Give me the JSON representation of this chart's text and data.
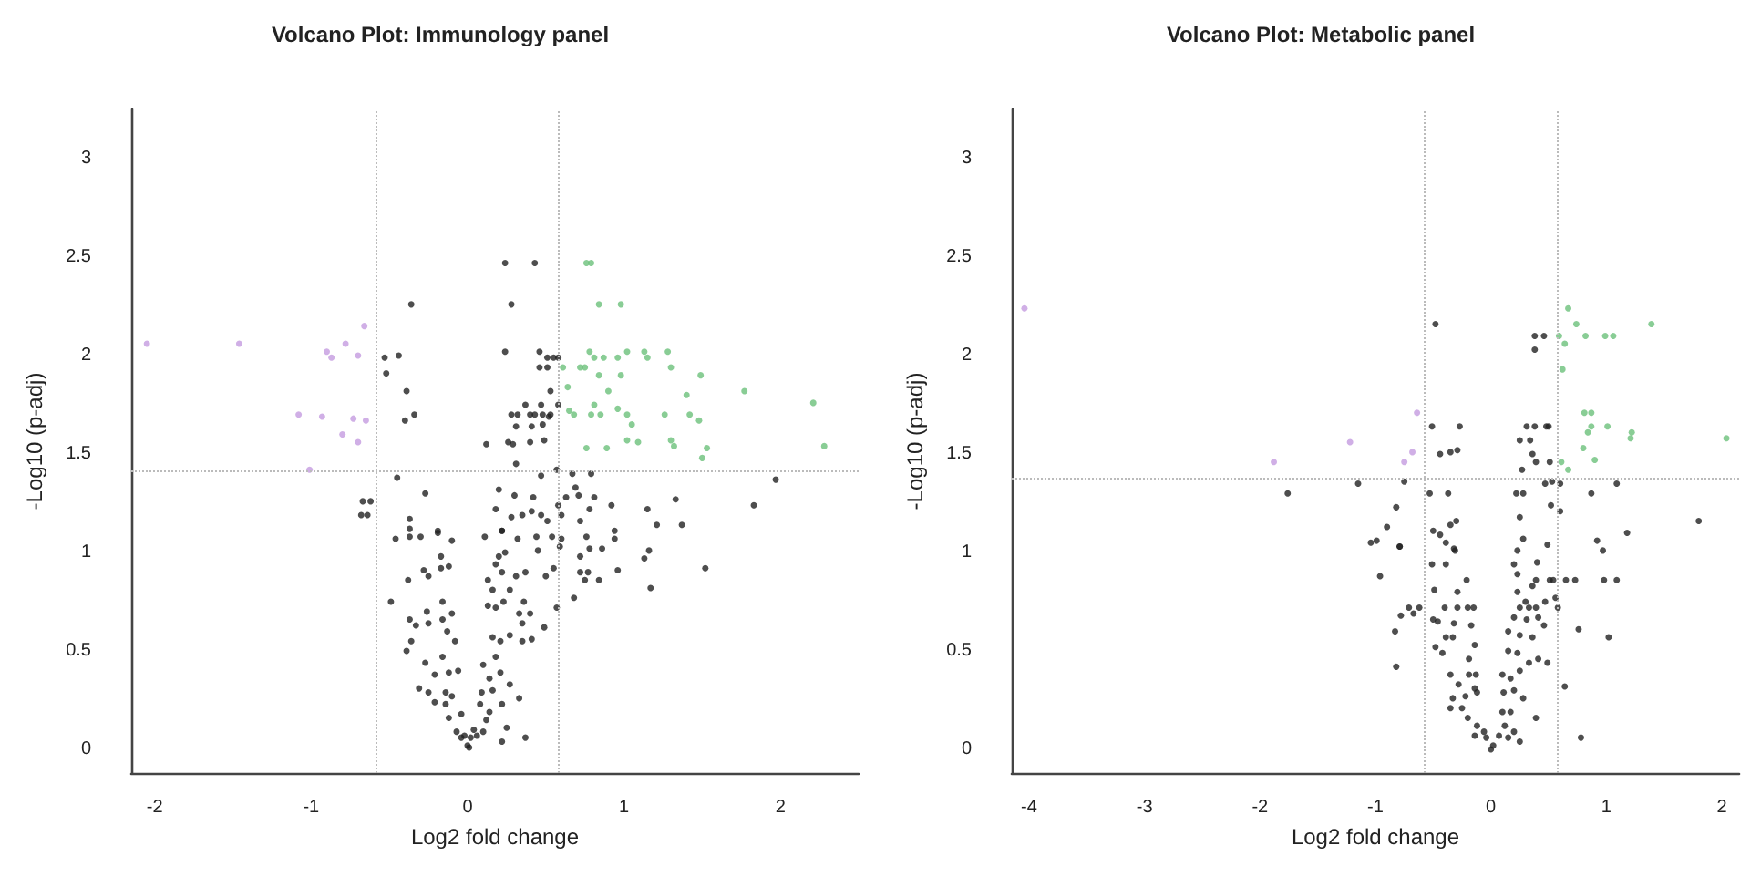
{
  "chart_data": [
    {
      "type": "scatter",
      "title": "Volcano Plot: Immunology panel",
      "xlabel": "Log2 fold change",
      "ylabel": "-Log10 (p-adj)",
      "xlim": [
        -2.15,
        2.5
      ],
      "xticks": [
        -2,
        -1,
        0,
        1,
        2
      ],
      "ylim": [
        -0.12,
        3.25
      ],
      "yticks": [
        0,
        0.5,
        1,
        1.5,
        2,
        2.5,
        3
      ],
      "grid": false,
      "marker": "circle",
      "ref_lines": [
        {
          "axis": "x",
          "value": -0.585,
          "color": "#bbbbbb",
          "line_style": "dotted"
        },
        {
          "axis": "x",
          "value": 0.585,
          "color": "#bbbbbb",
          "line_style": "dotted"
        },
        {
          "axis": "y",
          "value": 1.41,
          "color": "#bbbbbb",
          "line_style": "dotted"
        }
      ],
      "series": [
        {
          "color": "#c49be0",
          "x": [
            -2.05,
            -1.46,
            -0.9,
            -0.87,
            -0.78,
            -0.7,
            -0.66,
            -1.08,
            -0.93,
            -0.73,
            -0.65,
            -0.8,
            -0.7,
            -1.01
          ],
          "values": [
            2.06,
            2.06,
            2.02,
            1.99,
            2.06,
            2.0,
            2.15,
            1.7,
            1.69,
            1.68,
            1.67,
            1.6,
            1.56,
            1.42
          ]
        },
        {
          "color": "#6cc07a",
          "x": [
            0.78,
            0.81,
            0.87,
            0.96,
            1.02,
            1.13,
            1.15,
            1.28,
            0.61,
            0.72,
            0.75,
            0.84,
            0.98,
            1.3,
            1.49,
            0.64,
            0.9,
            1.4,
            1.77,
            2.21,
            0.65,
            0.68,
            0.81,
            0.96,
            0.79,
            0.85,
            1.02,
            1.05,
            1.26,
            1.42,
            1.48,
            1.02,
            1.09,
            1.3,
            1.32,
            1.53,
            1.5,
            0.89,
            0.76,
            2.28,
            0.76,
            0.79,
            0.84,
            0.98
          ],
          "values": [
            2.02,
            1.99,
            1.99,
            1.99,
            2.02,
            2.02,
            1.99,
            2.02,
            1.94,
            1.94,
            1.94,
            1.9,
            1.9,
            1.94,
            1.9,
            1.84,
            1.82,
            1.8,
            1.82,
            1.76,
            1.72,
            1.7,
            1.75,
            1.73,
            1.7,
            1.7,
            1.7,
            1.65,
            1.7,
            1.7,
            1.67,
            1.57,
            1.56,
            1.57,
            1.54,
            1.53,
            1.48,
            1.53,
            1.53,
            1.54,
            2.47,
            2.47,
            2.26,
            2.26
          ]
        },
        {
          "color": "#222222",
          "x": [
            -0.36,
            0.24,
            0.43,
            0.28,
            -0.53,
            -0.44,
            -0.52,
            -0.39,
            -0.4,
            -0.34,
            0.24,
            0.46,
            0.51,
            0.55,
            0.58,
            0.46,
            0.51,
            0.53,
            0.37,
            0.47,
            0.58,
            0.28,
            0.32,
            0.4,
            0.43,
            0.48,
            0.53,
            0.31,
            0.41,
            0.48,
            0.52,
            0.12,
            0.26,
            0.29,
            0.4,
            0.49,
            0.31,
            0.57,
            -0.45,
            -0.27,
            -0.67,
            -0.62,
            -0.68,
            -0.64,
            0.2,
            0.3,
            0.42,
            0.47,
            0.67,
            0.79,
            0.69,
            0.71,
            0.81,
            0.63,
            0.18,
            0.35,
            0.47,
            0.58,
            0.6,
            0.41,
            0.78,
            0.92,
            1.15,
            1.33,
            1.83,
            1.97,
            1.21,
            1.37,
            -0.37,
            -0.37,
            -0.19,
            0.22,
            0.28,
            0.51,
            0.72,
            0.94,
            -0.46,
            -0.37,
            -0.3,
            -0.19,
            -0.1,
            0.11,
            0.22,
            0.32,
            0.44,
            0.54,
            0.6,
            0.76,
            0.94,
            -0.17,
            -0.38,
            -0.28,
            -0.17,
            -0.12,
            -0.25,
            0.2,
            0.24,
            0.18,
            0.22,
            0.31,
            0.13,
            0.27,
            0.16,
            0.37,
            0.45,
            0.55,
            0.5,
            0.59,
            0.72,
            0.78,
            0.86,
            0.72,
            0.77,
            0.75,
            0.84,
            0.96,
            1.13,
            1.16,
            1.17,
            1.52,
            0.68,
            -0.49,
            -0.26,
            -0.16,
            -0.37,
            -0.33,
            -0.25,
            -0.16,
            -0.1,
            -0.13,
            -0.08,
            -0.36,
            -0.39,
            0.13,
            0.18,
            0.23,
            0.36,
            0.33,
            0.4,
            0.35,
            0.49,
            0.57,
            0.16,
            0.21,
            0.27,
            0.35,
            0.41,
            -0.27,
            -0.16,
            -0.21,
            -0.12,
            -0.06,
            -0.31,
            -0.25,
            -0.14,
            -0.21,
            -0.1,
            -0.14,
            -0.04,
            -0.12,
            0.1,
            0.18,
            0.14,
            0.21,
            0.09,
            0.16,
            0.27,
            0.33,
            0.08,
            0.14,
            0.22,
            0.12,
            0.25,
            0.37,
            0.22,
            -0.07,
            -0.02,
            0.02,
            0.06,
            0.0,
            0.04,
            -0.04,
            0.1,
            0.01
          ],
          "values": [
            2.26,
            2.47,
            2.47,
            2.26,
            1.99,
            2.0,
            1.91,
            1.82,
            1.67,
            1.7,
            2.02,
            2.02,
            1.99,
            1.99,
            1.99,
            1.94,
            1.94,
            1.82,
            1.75,
            1.75,
            1.75,
            1.7,
            1.7,
            1.7,
            1.7,
            1.7,
            1.7,
            1.64,
            1.64,
            1.65,
            1.69,
            1.55,
            1.56,
            1.55,
            1.56,
            1.57,
            1.45,
            1.42,
            1.38,
            1.3,
            1.26,
            1.26,
            1.19,
            1.19,
            1.32,
            1.29,
            1.28,
            1.39,
            1.4,
            1.4,
            1.33,
            1.29,
            1.28,
            1.28,
            1.22,
            1.19,
            1.19,
            1.24,
            1.19,
            1.21,
            1.22,
            1.24,
            1.22,
            1.27,
            1.24,
            1.37,
            1.14,
            1.14,
            1.17,
            1.12,
            1.11,
            1.11,
            1.18,
            1.16,
            1.16,
            1.11,
            1.07,
            1.08,
            1.08,
            1.1,
            1.06,
            1.08,
            1.11,
            1.07,
            1.08,
            1.08,
            1.07,
            1.08,
            1.07,
            0.98,
            0.86,
            0.91,
            0.92,
            0.93,
            0.88,
            0.98,
            1.0,
            0.94,
            0.9,
            0.88,
            0.86,
            0.81,
            0.81,
            0.9,
            1.01,
            0.92,
            0.88,
            1.03,
            0.98,
            1.02,
            1.02,
            0.9,
            0.9,
            0.86,
            0.86,
            0.91,
            0.97,
            1.01,
            0.82,
            0.92,
            0.77,
            0.75,
            0.7,
            0.75,
            0.66,
            0.63,
            0.64,
            0.66,
            0.69,
            0.6,
            0.55,
            0.55,
            0.5,
            0.73,
            0.72,
            0.75,
            0.75,
            0.69,
            0.69,
            0.64,
            0.62,
            0.72,
            0.57,
            0.55,
            0.58,
            0.55,
            0.56,
            0.44,
            0.47,
            0.38,
            0.39,
            0.4,
            0.31,
            0.29,
            0.29,
            0.24,
            0.27,
            0.23,
            0.18,
            0.16,
            0.43,
            0.47,
            0.36,
            0.39,
            0.29,
            0.3,
            0.33,
            0.26,
            0.23,
            0.19,
            0.23,
            0.15,
            0.11,
            0.06,
            0.04,
            0.09,
            0.07,
            0.06,
            0.07,
            0.02,
            0.1,
            0.06,
            0.09,
            0.01
          ]
        }
      ]
    },
    {
      "type": "scatter",
      "title": "Volcano Plot: Metabolic panel",
      "xlabel": "Log2 fold change",
      "ylabel": "-Log10 (p-adj)",
      "xlim": [
        -4.15,
        2.15
      ],
      "xticks": [
        -4,
        -3,
        -2,
        -1,
        0,
        1,
        2
      ],
      "ylim": [
        -0.12,
        3.25
      ],
      "yticks": [
        0,
        0.5,
        1,
        1.5,
        2,
        2.5,
        3
      ],
      "grid": false,
      "marker": "circle",
      "ref_lines": [
        {
          "axis": "x",
          "value": -0.585,
          "color": "#bbbbbb",
          "line_style": "dotted"
        },
        {
          "axis": "x",
          "value": 0.585,
          "color": "#bbbbbb",
          "line_style": "dotted"
        },
        {
          "axis": "y",
          "value": 1.38,
          "color": "#bbbbbb",
          "line_style": "dotted"
        }
      ],
      "series": [
        {
          "color": "#c49be0",
          "x": [
            -4.04,
            -1.88,
            -1.22,
            -0.75,
            -0.68,
            -0.64
          ],
          "values": [
            2.24,
            1.46,
            1.56,
            1.46,
            1.51,
            1.71
          ]
        },
        {
          "color": "#6cc07a",
          "x": [
            0.67,
            0.74,
            1.39,
            0.59,
            0.82,
            0.99,
            1.06,
            0.64,
            0.62,
            0.81,
            0.87,
            0.87,
            1.01,
            0.84,
            1.22,
            1.21,
            2.04,
            0.8,
            0.9,
            0.61,
            0.67
          ],
          "values": [
            2.24,
            2.16,
            2.16,
            2.1,
            2.1,
            2.1,
            2.1,
            2.06,
            1.93,
            1.71,
            1.71,
            1.64,
            1.64,
            1.61,
            1.61,
            1.58,
            1.58,
            1.53,
            1.47,
            1.46,
            1.42
          ]
        },
        {
          "color": "#222222",
          "x": [
            -0.48,
            0.38,
            0.46,
            0.38,
            -0.51,
            -0.27,
            0.31,
            0.38,
            0.48,
            0.5,
            -0.44,
            -0.35,
            -0.29,
            0.25,
            0.34,
            0.36,
            0.39,
            0.51,
            0.27,
            -1.76,
            -1.15,
            -0.75,
            -0.53,
            -0.37,
            0.22,
            0.28,
            0.47,
            0.53,
            0.6,
            0.6,
            0.52,
            0.87,
            1.09,
            -0.82,
            -0.9,
            -1.04,
            -0.99,
            -0.79,
            -0.5,
            -0.44,
            -0.35,
            -0.3,
            -0.39,
            -0.31,
            0.25,
            0.28,
            0.49,
            0.92,
            0.97,
            1.18,
            1.8,
            0.23,
            -0.96,
            -0.82,
            -0.83,
            -0.78,
            -0.71,
            -0.62,
            -0.67,
            -0.79,
            -0.51,
            -0.39,
            -0.32,
            -0.49,
            -0.29,
            -0.21,
            -0.4,
            -0.29,
            -0.2,
            -0.15,
            -0.5,
            -0.46,
            -0.32,
            -0.39,
            -0.33,
            -0.17,
            -0.14,
            -0.48,
            -0.42,
            -0.19,
            -0.35,
            -0.19,
            -0.13,
            -0.28,
            -0.14,
            -0.33,
            -0.22,
            -0.12,
            -0.35,
            -0.25,
            -0.2,
            -0.12,
            -0.06,
            -0.14,
            -0.04,
            0.0,
            0.02,
            0.07,
            0.12,
            0.15,
            0.2,
            0.25,
            0.1,
            0.17,
            0.11,
            0.2,
            0.28,
            0.1,
            0.17,
            0.25,
            0.33,
            0.41,
            0.49,
            0.39,
            0.15,
            0.23,
            0.15,
            0.25,
            0.36,
            0.2,
            0.31,
            0.41,
            0.46,
            0.25,
            0.33,
            0.39,
            0.47,
            0.23,
            0.3,
            0.36,
            0.39,
            0.51,
            0.54,
            0.56,
            0.58,
            0.2,
            0.23,
            0.4,
            0.64,
            0.76,
            1.02,
            0.78,
            0.65,
            0.73,
            0.98,
            1.09
          ],
          "values": [
            2.16,
            2.1,
            2.1,
            2.03,
            1.64,
            1.64,
            1.64,
            1.64,
            1.64,
            1.64,
            1.5,
            1.51,
            1.52,
            1.57,
            1.57,
            1.5,
            1.46,
            1.46,
            1.42,
            1.3,
            1.35,
            1.36,
            1.3,
            1.3,
            1.3,
            1.3,
            1.35,
            1.36,
            1.35,
            1.21,
            1.24,
            1.3,
            1.35,
            1.23,
            1.13,
            1.05,
            1.06,
            1.03,
            1.11,
            1.09,
            1.14,
            1.16,
            1.05,
            1.01,
            1.18,
            1.07,
            1.04,
            1.06,
            1.01,
            1.1,
            1.16,
            1.01,
            0.88,
            0.42,
            0.6,
            0.68,
            0.72,
            0.72,
            0.69,
            1.03,
            0.94,
            0.94,
            1.02,
            0.81,
            0.8,
            0.86,
            0.72,
            0.72,
            0.72,
            0.72,
            0.66,
            0.65,
            0.64,
            0.57,
            0.57,
            0.63,
            0.53,
            0.52,
            0.49,
            0.46,
            0.38,
            0.38,
            0.38,
            0.33,
            0.31,
            0.26,
            0.27,
            0.29,
            0.21,
            0.21,
            0.16,
            0.12,
            0.09,
            0.07,
            0.06,
            0.0,
            0.02,
            0.07,
            0.12,
            0.06,
            0.09,
            0.04,
            0.19,
            0.19,
            0.29,
            0.3,
            0.26,
            0.38,
            0.36,
            0.4,
            0.44,
            0.46,
            0.44,
            0.16,
            0.5,
            0.49,
            0.6,
            0.58,
            0.57,
            0.67,
            0.66,
            0.67,
            0.63,
            0.72,
            0.72,
            0.72,
            0.75,
            0.8,
            0.75,
            0.83,
            0.86,
            0.86,
            0.86,
            0.77,
            0.72,
            0.94,
            0.89,
            0.95,
            0.32,
            0.61,
            0.57,
            0.06,
            0.86,
            0.86,
            0.86,
            0.86
          ]
        }
      ]
    }
  ]
}
